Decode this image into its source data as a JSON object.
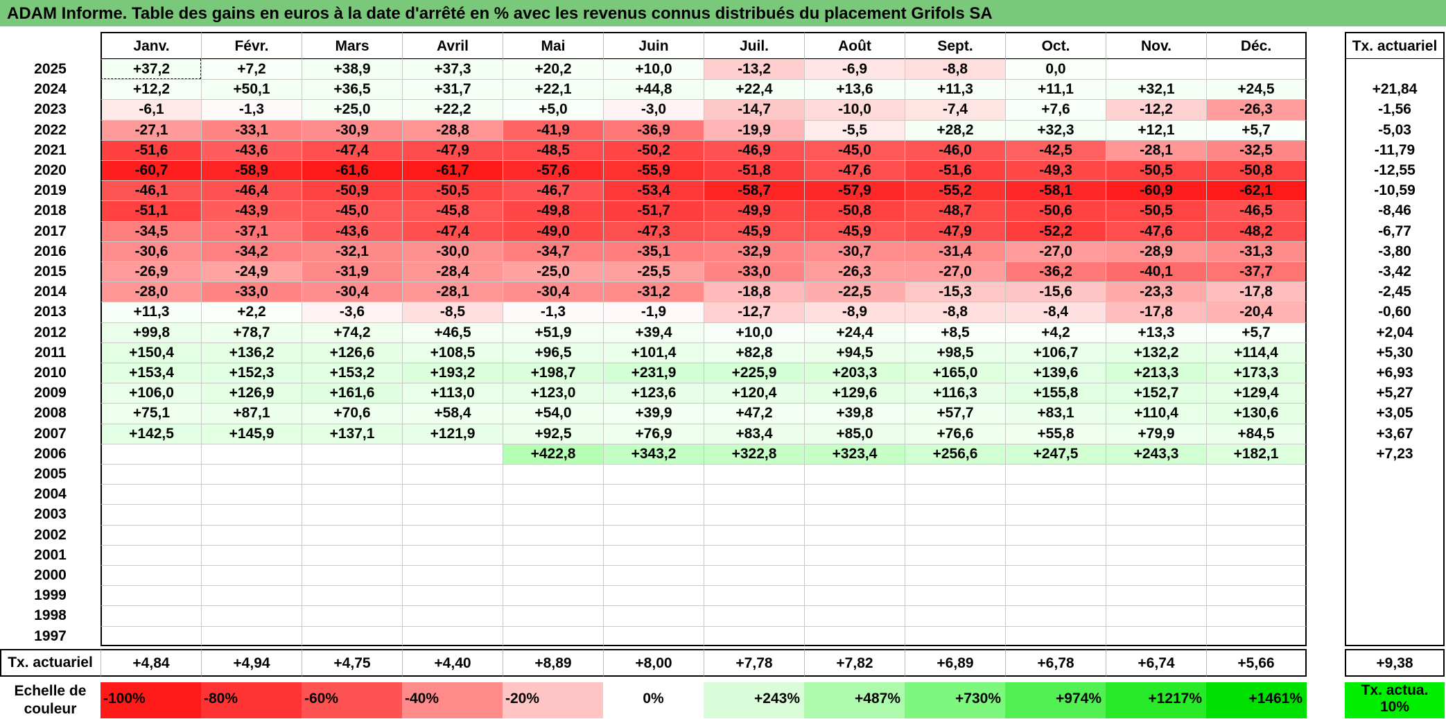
{
  "title": "ADAM Informe. Table des gains en euros à la date d'arrêté en % avec les revenus connus distribués du placement Grifols SA",
  "months": [
    "Janv.",
    "Févr.",
    "Mars",
    "Avril",
    "Mai",
    "Juin",
    "Juil.",
    "Août",
    "Sept.",
    "Oct.",
    "Nov.",
    "Déc."
  ],
  "tx_header": "Tx. actuariel",
  "rows": [
    {
      "year": "2025",
      "values": [
        "+37,2",
        "+7,2",
        "+38,9",
        "+37,3",
        "+20,2",
        "+10,0",
        "-13,2",
        "-6,9",
        "-8,8",
        "0,0",
        "",
        ""
      ],
      "tx": ""
    },
    {
      "year": "2024",
      "values": [
        "+12,2",
        "+50,1",
        "+36,5",
        "+31,7",
        "+22,1",
        "+44,8",
        "+22,4",
        "+13,6",
        "+11,3",
        "+11,1",
        "+32,1",
        "+24,5"
      ],
      "tx": "+21,84"
    },
    {
      "year": "2023",
      "values": [
        "-6,1",
        "-1,3",
        "+25,0",
        "+22,2",
        "+5,0",
        "-3,0",
        "-14,7",
        "-10,0",
        "-7,4",
        "+7,6",
        "-12,2",
        "-26,3"
      ],
      "tx": "-1,56"
    },
    {
      "year": "2022",
      "values": [
        "-27,1",
        "-33,1",
        "-30,9",
        "-28,8",
        "-41,9",
        "-36,9",
        "-19,9",
        "-5,5",
        "+28,2",
        "+32,3",
        "+12,1",
        "+5,7"
      ],
      "tx": "-5,03"
    },
    {
      "year": "2021",
      "values": [
        "-51,6",
        "-43,6",
        "-47,4",
        "-47,9",
        "-48,5",
        "-50,2",
        "-46,9",
        "-45,0",
        "-46,0",
        "-42,5",
        "-28,1",
        "-32,5"
      ],
      "tx": "-11,79"
    },
    {
      "year": "2020",
      "values": [
        "-60,7",
        "-58,9",
        "-61,6",
        "-61,7",
        "-57,6",
        "-55,9",
        "-51,8",
        "-47,6",
        "-51,6",
        "-49,3",
        "-50,5",
        "-50,8"
      ],
      "tx": "-12,55"
    },
    {
      "year": "2019",
      "values": [
        "-46,1",
        "-46,4",
        "-50,9",
        "-50,5",
        "-46,7",
        "-53,4",
        "-58,7",
        "-57,9",
        "-55,2",
        "-58,1",
        "-60,9",
        "-62,1"
      ],
      "tx": "-10,59"
    },
    {
      "year": "2018",
      "values": [
        "-51,1",
        "-43,9",
        "-45,0",
        "-45,8",
        "-49,8",
        "-51,7",
        "-49,9",
        "-50,8",
        "-48,7",
        "-50,6",
        "-50,5",
        "-46,5"
      ],
      "tx": "-8,46"
    },
    {
      "year": "2017",
      "values": [
        "-34,5",
        "-37,1",
        "-43,6",
        "-47,4",
        "-49,0",
        "-47,3",
        "-45,9",
        "-45,9",
        "-47,9",
        "-52,2",
        "-47,6",
        "-48,2"
      ],
      "tx": "-6,77"
    },
    {
      "year": "2016",
      "values": [
        "-30,6",
        "-34,2",
        "-32,1",
        "-30,0",
        "-34,7",
        "-35,1",
        "-32,9",
        "-30,7",
        "-31,4",
        "-27,0",
        "-28,9",
        "-31,3"
      ],
      "tx": "-3,80"
    },
    {
      "year": "2015",
      "values": [
        "-26,9",
        "-24,9",
        "-31,9",
        "-28,4",
        "-25,0",
        "-25,5",
        "-33,0",
        "-26,3",
        "-27,0",
        "-36,2",
        "-40,1",
        "-37,7"
      ],
      "tx": "-3,42"
    },
    {
      "year": "2014",
      "values": [
        "-28,0",
        "-33,0",
        "-30,4",
        "-28,1",
        "-30,4",
        "-31,2",
        "-18,8",
        "-22,5",
        "-15,3",
        "-15,6",
        "-23,3",
        "-17,8"
      ],
      "tx": "-2,45"
    },
    {
      "year": "2013",
      "values": [
        "+11,3",
        "+2,2",
        "-3,6",
        "-8,5",
        "-1,3",
        "-1,9",
        "-12,7",
        "-8,9",
        "-8,8",
        "-8,4",
        "-17,8",
        "-20,4"
      ],
      "tx": "-0,60"
    },
    {
      "year": "2012",
      "values": [
        "+99,8",
        "+78,7",
        "+74,2",
        "+46,5",
        "+51,9",
        "+39,4",
        "+10,0",
        "+24,4",
        "+8,5",
        "+4,2",
        "+13,3",
        "+5,7"
      ],
      "tx": "+2,04"
    },
    {
      "year": "2011",
      "values": [
        "+150,4",
        "+136,2",
        "+126,6",
        "+108,5",
        "+96,5",
        "+101,4",
        "+82,8",
        "+94,5",
        "+98,5",
        "+106,7",
        "+132,2",
        "+114,4"
      ],
      "tx": "+5,30"
    },
    {
      "year": "2010",
      "values": [
        "+153,4",
        "+152,3",
        "+153,2",
        "+193,2",
        "+198,7",
        "+231,9",
        "+225,9",
        "+203,3",
        "+165,0",
        "+139,6",
        "+213,3",
        "+173,3"
      ],
      "tx": "+6,93"
    },
    {
      "year": "2009",
      "values": [
        "+106,0",
        "+126,9",
        "+161,6",
        "+113,0",
        "+123,0",
        "+123,6",
        "+120,4",
        "+129,6",
        "+116,3",
        "+155,8",
        "+152,7",
        "+129,4"
      ],
      "tx": "+5,27"
    },
    {
      "year": "2008",
      "values": [
        "+75,1",
        "+87,1",
        "+70,6",
        "+58,4",
        "+54,0",
        "+39,9",
        "+47,2",
        "+39,8",
        "+57,7",
        "+83,1",
        "+110,4",
        "+130,6"
      ],
      "tx": "+3,05"
    },
    {
      "year": "2007",
      "values": [
        "+142,5",
        "+145,9",
        "+137,1",
        "+121,9",
        "+92,5",
        "+76,9",
        "+83,4",
        "+85,0",
        "+76,6",
        "+55,8",
        "+79,9",
        "+84,5"
      ],
      "tx": "+3,67"
    },
    {
      "year": "2006",
      "values": [
        "",
        "",
        "",
        "",
        "+422,8",
        "+343,2",
        "+322,8",
        "+323,4",
        "+256,6",
        "+247,5",
        "+243,3",
        "+182,1"
      ],
      "tx": "+7,23"
    },
    {
      "year": "2005",
      "values": [
        "",
        "",
        "",
        "",
        "",
        "",
        "",
        "",
        "",
        "",
        "",
        ""
      ],
      "tx": ""
    },
    {
      "year": "2004",
      "values": [
        "",
        "",
        "",
        "",
        "",
        "",
        "",
        "",
        "",
        "",
        "",
        ""
      ],
      "tx": ""
    },
    {
      "year": "2003",
      "values": [
        "",
        "",
        "",
        "",
        "",
        "",
        "",
        "",
        "",
        "",
        "",
        ""
      ],
      "tx": ""
    },
    {
      "year": "2002",
      "values": [
        "",
        "",
        "",
        "",
        "",
        "",
        "",
        "",
        "",
        "",
        "",
        ""
      ],
      "tx": ""
    },
    {
      "year": "2001",
      "values": [
        "",
        "",
        "",
        "",
        "",
        "",
        "",
        "",
        "",
        "",
        "",
        ""
      ],
      "tx": ""
    },
    {
      "year": "2000",
      "values": [
        "",
        "",
        "",
        "",
        "",
        "",
        "",
        "",
        "",
        "",
        "",
        ""
      ],
      "tx": ""
    },
    {
      "year": "1999",
      "values": [
        "",
        "",
        "",
        "",
        "",
        "",
        "",
        "",
        "",
        "",
        "",
        ""
      ],
      "tx": ""
    },
    {
      "year": "1998",
      "values": [
        "",
        "",
        "",
        "",
        "",
        "",
        "",
        "",
        "",
        "",
        "",
        ""
      ],
      "tx": ""
    },
    {
      "year": "1997",
      "values": [
        "",
        "",
        "",
        "",
        "",
        "",
        "",
        "",
        "",
        "",
        "",
        ""
      ],
      "tx": ""
    }
  ],
  "footer": {
    "label": "Tx. actuariel",
    "values": [
      "+4,84",
      "+4,94",
      "+4,75",
      "+4,40",
      "+8,89",
      "+8,00",
      "+7,78",
      "+7,82",
      "+6,89",
      "+6,78",
      "+6,74",
      "+5,66"
    ],
    "total": "+9,38"
  },
  "scale": {
    "label": "Echelle de couleur",
    "items": [
      {
        "text": "-100%",
        "color": "#ff1a1a",
        "align": "l"
      },
      {
        "text": "-80%",
        "color": "#ff3333",
        "align": "l"
      },
      {
        "text": "-60%",
        "color": "#ff5252",
        "align": "l"
      },
      {
        "text": "-40%",
        "color": "#ff8a8a",
        "align": "l"
      },
      {
        "text": "-20%",
        "color": "#ffc4c4",
        "align": "l"
      },
      {
        "text": "0%",
        "color": "#ffffff",
        "align": "c"
      },
      {
        "text": "+243%",
        "color": "#d8fdd8",
        "align": "r"
      },
      {
        "text": "+487%",
        "color": "#adfaad",
        "align": "r"
      },
      {
        "text": "+730%",
        "color": "#7ef77e",
        "align": "r"
      },
      {
        "text": "+974%",
        "color": "#52f052",
        "align": "r"
      },
      {
        "text": "+1217%",
        "color": "#28ea28",
        "align": "r"
      },
      {
        "text": "+1461%",
        "color": "#00e000",
        "align": "r"
      }
    ],
    "tx_legend": "Tx. actua. 10%"
  }
}
